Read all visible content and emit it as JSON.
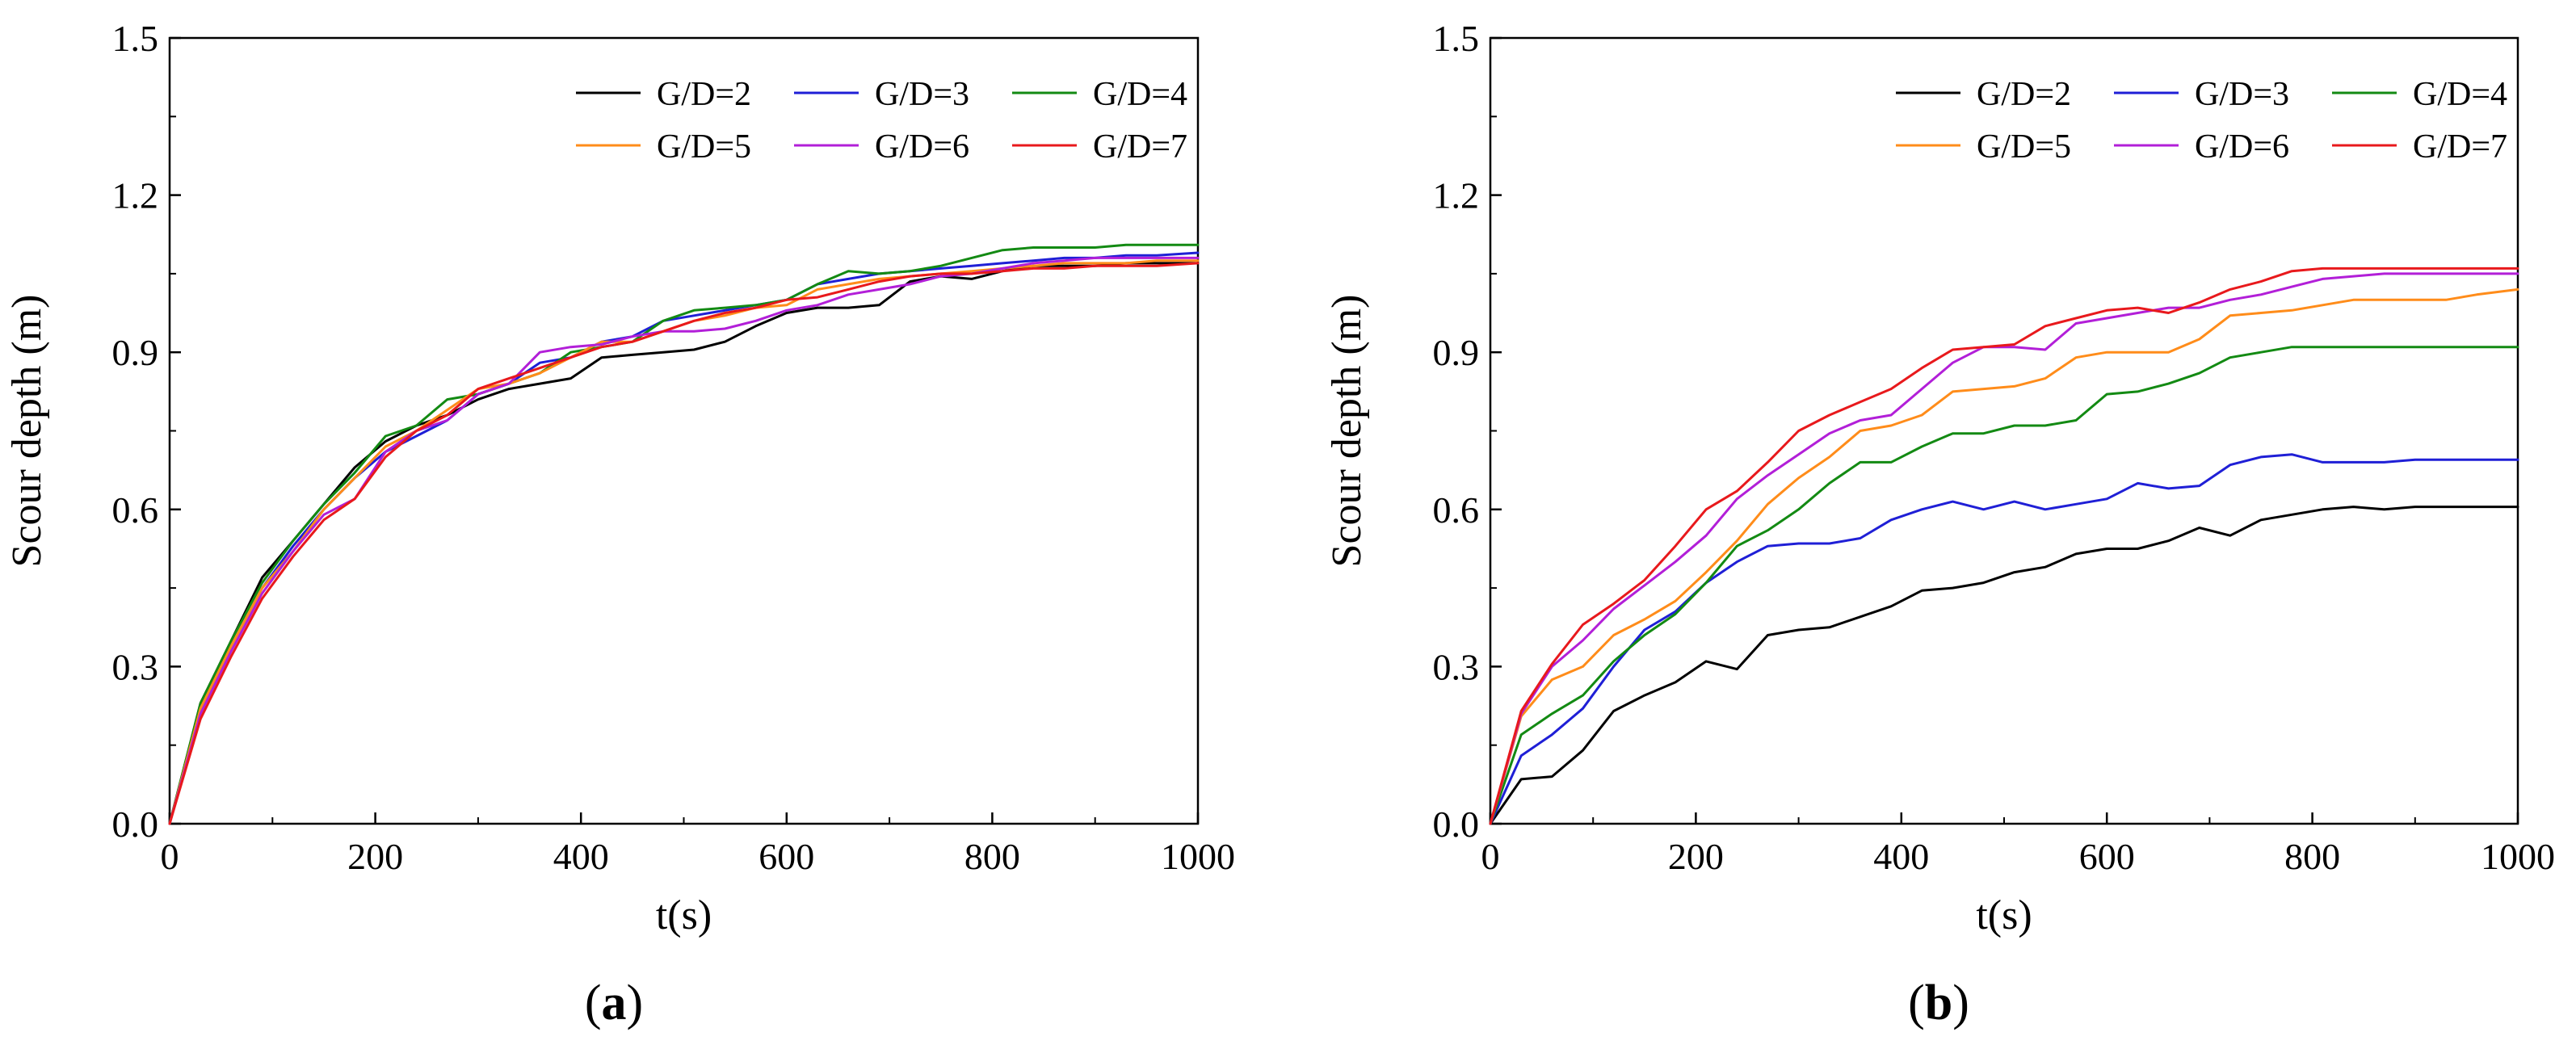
{
  "chart_data": [
    {
      "type": "line",
      "panel_label": "(a)",
      "panel_letter": "a",
      "title": "",
      "xlabel": "t(s)",
      "ylabel": "Scour depth (m)",
      "xlim": [
        0,
        1000
      ],
      "ylim": [
        0,
        1.5
      ],
      "xticks": [
        0,
        200,
        400,
        600,
        800,
        1000
      ],
      "yticks": [
        "0.0",
        "0.3",
        "0.6",
        "0.9",
        "1.2",
        "1.5"
      ],
      "legend_position": "top-right",
      "x": [
        0,
        30,
        60,
        90,
        120,
        150,
        180,
        210,
        240,
        270,
        300,
        330,
        360,
        390,
        420,
        450,
        480,
        510,
        540,
        570,
        600,
        630,
        660,
        690,
        720,
        750,
        780,
        810,
        840,
        870,
        900,
        930,
        960,
        1000
      ],
      "series": [
        {
          "name": "G/D=2",
          "color": "#000000",
          "values": [
            0,
            0.23,
            0.35,
            0.47,
            0.54,
            0.61,
            0.68,
            0.73,
            0.76,
            0.78,
            0.81,
            0.83,
            0.84,
            0.85,
            0.89,
            0.895,
            0.9,
            0.905,
            0.92,
            0.95,
            0.975,
            0.985,
            0.985,
            0.99,
            1.035,
            1.045,
            1.04,
            1.055,
            1.065,
            1.065,
            1.065,
            1.07,
            1.07,
            1.07
          ]
        },
        {
          "name": "G/D=3",
          "color": "#1f1fd6",
          "values": [
            0,
            0.22,
            0.34,
            0.45,
            0.53,
            0.6,
            0.66,
            0.71,
            0.74,
            0.77,
            0.82,
            0.84,
            0.88,
            0.89,
            0.92,
            0.93,
            0.96,
            0.97,
            0.98,
            0.99,
            1.0,
            1.03,
            1.04,
            1.05,
            1.055,
            1.06,
            1.065,
            1.07,
            1.075,
            1.08,
            1.08,
            1.085,
            1.085,
            1.09
          ]
        },
        {
          "name": "G/D=4",
          "color": "#138a13",
          "values": [
            0,
            0.23,
            0.35,
            0.46,
            0.54,
            0.61,
            0.67,
            0.74,
            0.76,
            0.81,
            0.82,
            0.84,
            0.86,
            0.9,
            0.91,
            0.92,
            0.96,
            0.98,
            0.985,
            0.99,
            1.0,
            1.03,
            1.055,
            1.05,
            1.055,
            1.065,
            1.08,
            1.095,
            1.1,
            1.1,
            1.1,
            1.105,
            1.105,
            1.105
          ]
        },
        {
          "name": "G/D=5",
          "color": "#ff8c1a",
          "values": [
            0,
            0.22,
            0.34,
            0.45,
            0.52,
            0.6,
            0.66,
            0.72,
            0.75,
            0.79,
            0.83,
            0.84,
            0.86,
            0.89,
            0.92,
            0.92,
            0.94,
            0.96,
            0.97,
            0.985,
            0.99,
            1.02,
            1.03,
            1.04,
            1.045,
            1.05,
            1.055,
            1.06,
            1.065,
            1.07,
            1.07,
            1.07,
            1.075,
            1.075
          ]
        },
        {
          "name": "G/D=6",
          "color": "#b21fd8",
          "values": [
            0,
            0.21,
            0.33,
            0.44,
            0.52,
            0.59,
            0.62,
            0.71,
            0.75,
            0.77,
            0.82,
            0.84,
            0.9,
            0.91,
            0.915,
            0.93,
            0.94,
            0.94,
            0.945,
            0.96,
            0.98,
            0.99,
            1.01,
            1.02,
            1.03,
            1.045,
            1.05,
            1.06,
            1.07,
            1.075,
            1.08,
            1.08,
            1.08,
            1.08
          ]
        },
        {
          "name": "G/D=7",
          "color": "#e8191c",
          "values": [
            0,
            0.2,
            0.32,
            0.43,
            0.51,
            0.58,
            0.62,
            0.7,
            0.75,
            0.78,
            0.83,
            0.85,
            0.87,
            0.89,
            0.91,
            0.92,
            0.94,
            0.96,
            0.975,
            0.985,
            1.0,
            1.005,
            1.02,
            1.035,
            1.045,
            1.05,
            1.05,
            1.055,
            1.06,
            1.06,
            1.065,
            1.065,
            1.065,
            1.07
          ]
        }
      ]
    },
    {
      "type": "line",
      "panel_label": "(b)",
      "panel_letter": "b",
      "title": "",
      "xlabel": "t(s)",
      "ylabel": "Scour depth (m)",
      "xlim": [
        0,
        1000
      ],
      "ylim": [
        0,
        1.5
      ],
      "xticks": [
        0,
        200,
        400,
        600,
        800,
        1000
      ],
      "yticks": [
        "0.0",
        "0.3",
        "0.6",
        "0.9",
        "1.2",
        "1.5"
      ],
      "legend_position": "top-right",
      "x": [
        0,
        30,
        60,
        90,
        120,
        150,
        180,
        210,
        240,
        270,
        300,
        330,
        360,
        390,
        420,
        450,
        480,
        510,
        540,
        570,
        600,
        630,
        660,
        690,
        720,
        750,
        780,
        810,
        840,
        870,
        900,
        930,
        960,
        1000
      ],
      "series": [
        {
          "name": "G/D=2",
          "color": "#000000",
          "values": [
            0,
            0.085,
            0.09,
            0.14,
            0.215,
            0.245,
            0.27,
            0.31,
            0.295,
            0.36,
            0.37,
            0.375,
            0.395,
            0.415,
            0.445,
            0.45,
            0.46,
            0.48,
            0.49,
            0.515,
            0.525,
            0.525,
            0.54,
            0.565,
            0.55,
            0.58,
            0.59,
            0.6,
            0.605,
            0.6,
            0.605,
            0.605,
            0.605,
            0.605
          ]
        },
        {
          "name": "G/D=3",
          "color": "#1f1fd6",
          "values": [
            0,
            0.13,
            0.17,
            0.22,
            0.3,
            0.37,
            0.405,
            0.46,
            0.5,
            0.53,
            0.535,
            0.535,
            0.545,
            0.58,
            0.6,
            0.615,
            0.6,
            0.615,
            0.6,
            0.61,
            0.62,
            0.65,
            0.64,
            0.645,
            0.685,
            0.7,
            0.705,
            0.69,
            0.69,
            0.69,
            0.695,
            0.695,
            0.695,
            0.695
          ]
        },
        {
          "name": "G/D=4",
          "color": "#138a13",
          "values": [
            0,
            0.17,
            0.21,
            0.245,
            0.31,
            0.36,
            0.4,
            0.46,
            0.53,
            0.56,
            0.6,
            0.65,
            0.69,
            0.69,
            0.72,
            0.745,
            0.745,
            0.76,
            0.76,
            0.77,
            0.82,
            0.825,
            0.84,
            0.86,
            0.89,
            0.9,
            0.91,
            0.91,
            0.91,
            0.91,
            0.91,
            0.91,
            0.91,
            0.91
          ]
        },
        {
          "name": "G/D=5",
          "color": "#ff8c1a",
          "values": [
            0,
            0.205,
            0.275,
            0.3,
            0.36,
            0.39,
            0.425,
            0.48,
            0.54,
            0.61,
            0.66,
            0.7,
            0.75,
            0.76,
            0.78,
            0.825,
            0.83,
            0.835,
            0.85,
            0.89,
            0.9,
            0.9,
            0.9,
            0.925,
            0.97,
            0.975,
            0.98,
            0.99,
            1.0,
            1.0,
            1.0,
            1.0,
            1.01,
            1.02
          ]
        },
        {
          "name": "G/D=6",
          "color": "#b21fd8",
          "values": [
            0,
            0.21,
            0.3,
            0.35,
            0.41,
            0.455,
            0.5,
            0.55,
            0.62,
            0.665,
            0.705,
            0.745,
            0.77,
            0.78,
            0.83,
            0.88,
            0.91,
            0.91,
            0.905,
            0.955,
            0.965,
            0.975,
            0.985,
            0.985,
            1.0,
            1.01,
            1.025,
            1.04,
            1.045,
            1.05,
            1.05,
            1.05,
            1.05,
            1.05
          ]
        },
        {
          "name": "G/D=7",
          "color": "#e8191c",
          "values": [
            0,
            0.215,
            0.305,
            0.38,
            0.42,
            0.465,
            0.53,
            0.6,
            0.635,
            0.69,
            0.75,
            0.78,
            0.805,
            0.83,
            0.87,
            0.905,
            0.91,
            0.915,
            0.95,
            0.965,
            0.98,
            0.985,
            0.975,
            0.995,
            1.02,
            1.035,
            1.055,
            1.06,
            1.06,
            1.06,
            1.06,
            1.06,
            1.06,
            1.06
          ]
        }
      ]
    }
  ]
}
